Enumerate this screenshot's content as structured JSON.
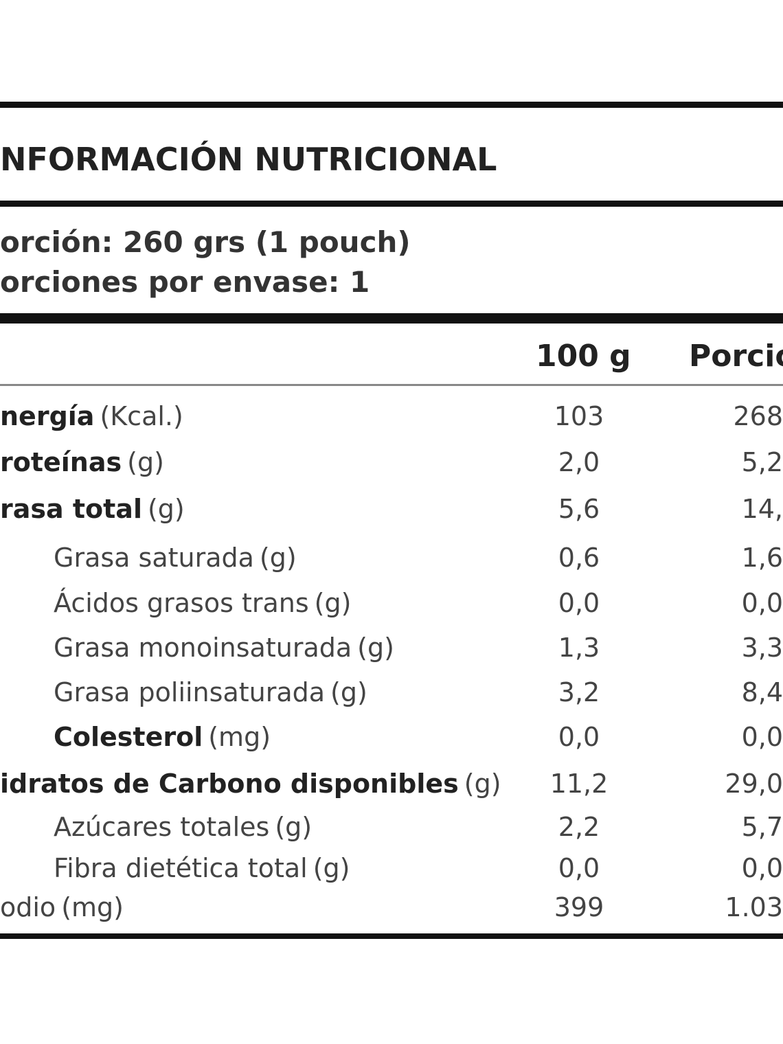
{
  "header": {
    "title": "NFORMACIÓN NUTRICIONAL",
    "serving": "orción: 260 grs (1 pouch)",
    "servings_per_pack": "orciones por envase: 1"
  },
  "table": {
    "columns": [
      "100 g",
      "Porcio"
    ],
    "rows": [
      {
        "name": "nergía",
        "unit": "(Kcal.)",
        "bold": true,
        "indent": false,
        "per100": "103",
        "portion": "268"
      },
      {
        "name": "roteínas",
        "unit": "(g)",
        "bold": true,
        "indent": false,
        "per100": "2,0",
        "portion": "5,2"
      },
      {
        "name": "rasa total",
        "unit": "(g)",
        "bold": true,
        "indent": false,
        "per100": "5,6",
        "portion": "14,"
      },
      {
        "name": "Grasa saturada",
        "unit": "(g)",
        "bold": false,
        "indent": true,
        "per100": "0,6",
        "portion": "1,6"
      },
      {
        "name": "Ácidos grasos trans",
        "unit": "(g)",
        "bold": false,
        "indent": true,
        "per100": "0,0",
        "portion": "0,0"
      },
      {
        "name": "Grasa monoinsaturada",
        "unit": "(g)",
        "bold": false,
        "indent": true,
        "per100": "1,3",
        "portion": "3,3"
      },
      {
        "name": "Grasa poliinsaturada",
        "unit": "(g)",
        "bold": false,
        "indent": true,
        "per100": "3,2",
        "portion": "8,4"
      },
      {
        "name": "Colesterol",
        "unit": "(mg)",
        "bold": true,
        "indent": true,
        "per100": "0,0",
        "portion": "0,0"
      },
      {
        "name": "idratos de Carbono disponibles",
        "unit": "(g)",
        "bold": true,
        "indent": false,
        "per100": "11,2",
        "portion": "29,0"
      },
      {
        "name": "Azúcares totales",
        "unit": "(g)",
        "bold": false,
        "indent": true,
        "per100": "2,2",
        "portion": "5,7"
      },
      {
        "name": "Fibra dietética total",
        "unit": "(g)",
        "bold": false,
        "indent": true,
        "per100": "0,0",
        "portion": "0,0"
      },
      {
        "name": "odio",
        "unit": "(mg)",
        "bold": false,
        "indent": false,
        "per100": "399",
        "portion": "1.03"
      }
    ]
  }
}
